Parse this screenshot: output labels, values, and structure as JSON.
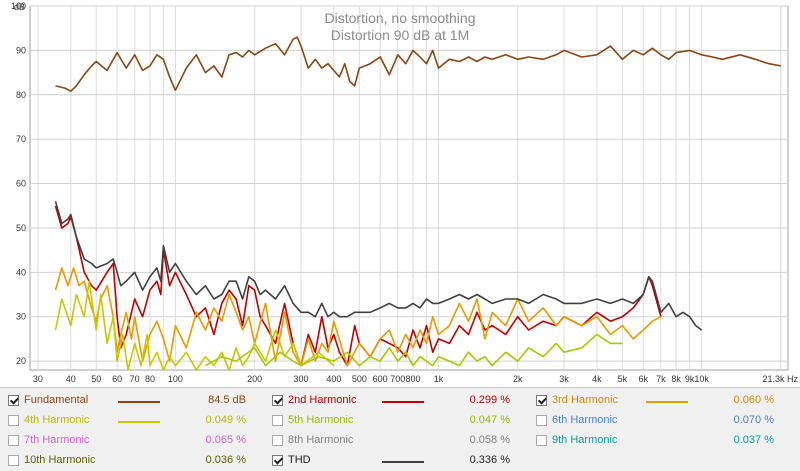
{
  "chart_data": {
    "type": "line",
    "title": "Distortion, no smoothing",
    "subtitle": "Distortion 90 dB at 1M",
    "ylabel": "dB",
    "xlabel": "",
    "x_unit": "Hz",
    "xscale": "log",
    "xlim": [
      28,
      21300
    ],
    "ylim": [
      18,
      100
    ],
    "grid": true,
    "yticks": [
      "100",
      "90",
      "80",
      "70",
      "60",
      "50",
      "40",
      "30",
      "20"
    ],
    "ytick_values": [
      100,
      90,
      80,
      70,
      60,
      50,
      40,
      30,
      20
    ],
    "xticks": [
      "30",
      "40",
      "50",
      "60",
      "70",
      "80",
      "100",
      "200",
      "300",
      "400",
      "500",
      "600",
      "700",
      "800",
      "1k",
      "2k",
      "3k",
      "4k",
      "5k",
      "6k",
      "7k",
      "8k",
      "9k",
      "10k",
      "21.3k Hz"
    ],
    "xtick_values": [
      30,
      40,
      50,
      60,
      70,
      80,
      100,
      200,
      300,
      400,
      500,
      600,
      700,
      800,
      1000,
      2000,
      3000,
      4000,
      5000,
      6000,
      7000,
      8000,
      9000,
      10000,
      21300
    ],
    "series": [
      {
        "name": "Fundamental",
        "color": "#8B4513",
        "x": [
          35,
          38,
          40,
          42,
          45,
          48,
          50,
          55,
          60,
          65,
          70,
          75,
          80,
          85,
          90,
          95,
          100,
          110,
          120,
          130,
          140,
          150,
          160,
          170,
          180,
          190,
          200,
          220,
          240,
          260,
          280,
          290,
          300,
          320,
          340,
          360,
          380,
          400,
          420,
          440,
          460,
          480,
          500,
          550,
          600,
          650,
          700,
          750,
          800,
          850,
          900,
          950,
          1000,
          1100,
          1200,
          1300,
          1400,
          1500,
          1600,
          1800,
          2000,
          2200,
          2500,
          2800,
          3000,
          3500,
          4000,
          4500,
          5000,
          5500,
          6000,
          6500,
          7000,
          7500,
          8000,
          9000,
          10000,
          11000,
          12000,
          14000,
          16000,
          18000,
          20000
        ],
        "y": [
          82,
          81.5,
          80.8,
          82,
          84.5,
          86.5,
          87.5,
          85.5,
          89.5,
          86,
          89,
          85.5,
          86.5,
          89,
          88,
          84,
          81,
          86,
          89,
          85,
          86.5,
          84,
          89,
          89.5,
          88.5,
          90,
          89,
          90.5,
          91.5,
          89,
          92.5,
          93,
          91,
          86,
          88,
          86,
          87,
          85.5,
          84,
          87,
          83,
          82,
          86,
          87,
          88.5,
          84.5,
          89,
          87,
          90,
          88.5,
          87,
          90,
          86,
          88,
          87.5,
          88.5,
          87.5,
          88.5,
          88,
          89,
          88,
          88.5,
          88,
          89,
          90,
          88.5,
          89,
          91,
          88,
          90,
          89,
          90.5,
          89,
          88,
          89.5,
          90,
          89,
          88.5,
          88,
          89,
          88,
          87,
          86.5
        ]
      },
      {
        "name": "2nd Harmonic",
        "color": "#c00000",
        "x": [
          35,
          37,
          39,
          40,
          42,
          45,
          48,
          50,
          55,
          58,
          60,
          62,
          65,
          70,
          75,
          80,
          85,
          88,
          90,
          95,
          100,
          110,
          120,
          130,
          140,
          150,
          160,
          170,
          180,
          190,
          200,
          210,
          220,
          240,
          260,
          280,
          300,
          320,
          340,
          360,
          380,
          400,
          420,
          450,
          480,
          500,
          550,
          600,
          650,
          700,
          750,
          800,
          850,
          900,
          950,
          1000,
          1100,
          1200,
          1300,
          1400,
          1500,
          1600,
          1800,
          2000,
          2200,
          2500,
          2800,
          3000,
          3500,
          4000,
          4500,
          5000,
          5500,
          6000,
          6300,
          6500,
          7000
        ],
        "y": [
          55,
          50,
          51,
          52.5,
          48,
          40,
          37,
          36,
          40,
          42,
          30,
          23,
          26,
          34,
          30,
          36,
          38,
          35,
          45,
          37,
          40,
          35,
          30,
          32,
          26,
          33,
          36,
          34,
          28,
          37,
          36,
          30,
          28,
          24,
          33,
          24,
          19,
          26,
          22,
          30,
          23,
          26,
          22,
          19,
          28,
          24,
          21,
          25,
          24,
          23,
          21,
          27,
          23,
          28,
          22,
          25,
          24,
          28,
          26,
          31,
          27,
          28,
          26,
          30,
          27,
          29,
          28,
          30,
          28,
          31,
          29,
          30,
          32,
          35,
          39,
          37,
          30
        ]
      },
      {
        "name": "3rd Harmonic",
        "color": "#e89a00",
        "x": [
          35,
          37,
          39,
          41,
          43,
          45,
          48,
          50,
          52,
          55,
          58,
          60,
          62,
          65,
          68,
          70,
          75,
          80,
          85,
          90,
          95,
          100,
          110,
          120,
          130,
          140,
          150,
          160,
          170,
          180,
          190,
          200,
          220,
          240,
          260,
          280,
          300,
          320,
          340,
          360,
          380,
          400,
          450,
          500,
          550,
          600,
          650,
          700,
          750,
          800,
          850,
          900,
          950,
          1000,
          1100,
          1200,
          1300,
          1400,
          1500,
          1600,
          1800,
          2000,
          2200,
          2500,
          2800,
          3000,
          3500,
          4000,
          4500,
          5000,
          5500,
          6000,
          6500,
          7000
        ],
        "y": [
          36,
          41,
          37,
          41,
          37,
          38,
          32,
          29,
          34,
          37,
          30,
          22,
          26,
          31,
          25,
          30,
          20,
          26,
          29,
          25,
          20,
          28,
          23,
          31,
          27,
          32,
          29,
          35,
          31,
          27,
          30,
          24,
          33,
          20,
          31,
          22,
          19,
          25,
          20,
          24,
          22,
          29,
          19,
          24,
          21,
          25,
          27,
          22,
          26,
          23,
          27,
          24,
          30,
          26,
          28,
          33,
          29,
          34,
          25,
          31,
          28,
          34,
          29,
          32,
          28,
          30,
          28,
          30,
          26,
          28,
          25,
          27,
          29,
          30
        ]
      },
      {
        "name": "4th Harmonic",
        "color": "#c8c800",
        "x": [
          35,
          37,
          39,
          40,
          42,
          45,
          47,
          50,
          52,
          55,
          58,
          60,
          63,
          66,
          70,
          74,
          78,
          80,
          85,
          90,
          95,
          100,
          110,
          120,
          130,
          140,
          150,
          160,
          170,
          180,
          190,
          200,
          220,
          240,
          260,
          280,
          300,
          350,
          400
        ],
        "y": [
          27,
          34,
          30,
          28,
          35,
          30,
          38,
          27,
          35,
          24,
          30,
          20,
          26,
          18,
          24,
          19,
          26,
          19,
          22,
          18,
          21,
          19,
          22,
          18,
          21,
          19,
          22,
          18,
          23,
          19,
          21,
          24,
          20,
          27,
          21,
          24,
          19,
          22,
          19
        ]
      },
      {
        "name": "5th Harmonic",
        "color": "#a8c800",
        "x": [
          130,
          150,
          170,
          200,
          220,
          250,
          280,
          300,
          350,
          400,
          450,
          500,
          550,
          600,
          650,
          700,
          750,
          800,
          850,
          900,
          950,
          1000,
          1100,
          1200,
          1300,
          1400,
          1500,
          1600,
          1800,
          2000,
          2200,
          2500,
          2800,
          3000,
          3500,
          4000,
          4500,
          5000
        ],
        "y": [
          19,
          21,
          20,
          23,
          19,
          22,
          20,
          19,
          21,
          20,
          22,
          19,
          21,
          20,
          23,
          20,
          22,
          19,
          21,
          20,
          19,
          21,
          20,
          19,
          22,
          20,
          21,
          19,
          22,
          20,
          23,
          21,
          24,
          22,
          23,
          26,
          24,
          24
        ]
      },
      {
        "name": "THD",
        "color": "#404040",
        "x": [
          35,
          37,
          39,
          40,
          42,
          45,
          48,
          50,
          55,
          58,
          60,
          62,
          65,
          70,
          75,
          80,
          85,
          88,
          90,
          95,
          100,
          110,
          120,
          130,
          140,
          150,
          160,
          170,
          180,
          190,
          200,
          210,
          220,
          240,
          260,
          280,
          300,
          320,
          340,
          360,
          380,
          400,
          420,
          450,
          480,
          500,
          550,
          600,
          650,
          700,
          750,
          800,
          850,
          900,
          950,
          1000,
          1100,
          1200,
          1300,
          1400,
          1500,
          1600,
          1800,
          2000,
          2200,
          2500,
          2800,
          3000,
          3500,
          4000,
          4500,
          5000,
          5500,
          6000,
          6300,
          6500,
          7000,
          7500,
          8000,
          8500,
          9000,
          9500,
          10000
        ],
        "y": [
          56,
          51,
          52,
          53,
          48,
          43,
          42,
          41,
          42,
          43,
          40,
          37,
          38,
          40,
          36,
          39,
          41,
          38,
          46,
          40,
          42,
          38,
          35,
          37,
          34,
          35,
          38,
          38,
          34,
          39,
          38,
          35,
          36,
          34,
          37,
          33,
          31,
          31,
          30,
          33,
          30,
          31,
          30,
          30,
          31,
          31,
          31,
          32,
          33,
          32,
          32,
          33,
          32,
          34,
          33,
          33,
          34,
          35,
          34,
          35,
          34,
          33,
          34,
          34,
          33,
          35,
          34,
          33,
          33,
          34,
          33,
          34,
          33,
          35,
          39,
          38,
          31,
          33,
          30,
          31,
          30,
          28,
          27
        ]
      }
    ]
  },
  "legend": {
    "rows": [
      [
        {
          "label": "Fundamental",
          "value": "84.5 dB",
          "checked": true,
          "label_color": "#8B4513",
          "value_color": "#8B4513",
          "swatch_color": "#8B4513",
          "show_swatch": true
        },
        {
          "label": "2nd Harmonic",
          "value": "0.299 %",
          "checked": true,
          "label_color": "#c00000",
          "value_color": "#c00000",
          "swatch_color": "#c00000",
          "show_swatch": true
        },
        {
          "label": "3rd Harmonic",
          "value": "0.060 %",
          "checked": true,
          "label_color": "#d08a00",
          "value_color": "#d08a00",
          "swatch_color": "#e89a00",
          "show_swatch": true
        }
      ],
      [
        {
          "label": "4th Harmonic",
          "value": "0.049 %",
          "checked": false,
          "label_color": "#b8b800",
          "value_color": "#b8b800",
          "swatch_color": "#c8c800",
          "show_swatch": true
        },
        {
          "label": "5th Harmonic",
          "value": "0.047 %",
          "checked": false,
          "label_color": "#9ab800",
          "value_color": "#9ab800",
          "swatch_color": "#a8c800",
          "show_swatch": false
        },
        {
          "label": "6th Harmonic",
          "value": "0.070 %",
          "checked": false,
          "label_color": "#4a80c8",
          "value_color": "#4a80c8",
          "swatch_color": "#4a80c8",
          "show_swatch": false
        }
      ],
      [
        {
          "label": "7th Harmonic",
          "value": "0.065 %",
          "checked": false,
          "label_color": "#d060d0",
          "value_color": "#d060d0",
          "swatch_color": "#d060d0",
          "show_swatch": false
        },
        {
          "label": "8th Harmonic",
          "value": "0.058 %",
          "checked": false,
          "label_color": "#808080",
          "value_color": "#808080",
          "swatch_color": "#808080",
          "show_swatch": false
        },
        {
          "label": "9th Harmonic",
          "value": "0.037 %",
          "checked": false,
          "label_color": "#00a0a0",
          "value_color": "#00a0a0",
          "swatch_color": "#00a0a0",
          "show_swatch": false
        }
      ],
      [
        {
          "label": "10th Harmonic",
          "value": "0.036 %",
          "checked": false,
          "label_color": "#606000",
          "value_color": "#606000",
          "swatch_color": "#606000",
          "show_swatch": false
        },
        {
          "label": "THD",
          "value": "0.336 %",
          "checked": true,
          "label_color": "#222222",
          "value_color": "#222222",
          "swatch_color": "#404040",
          "show_swatch": true
        }
      ]
    ]
  }
}
